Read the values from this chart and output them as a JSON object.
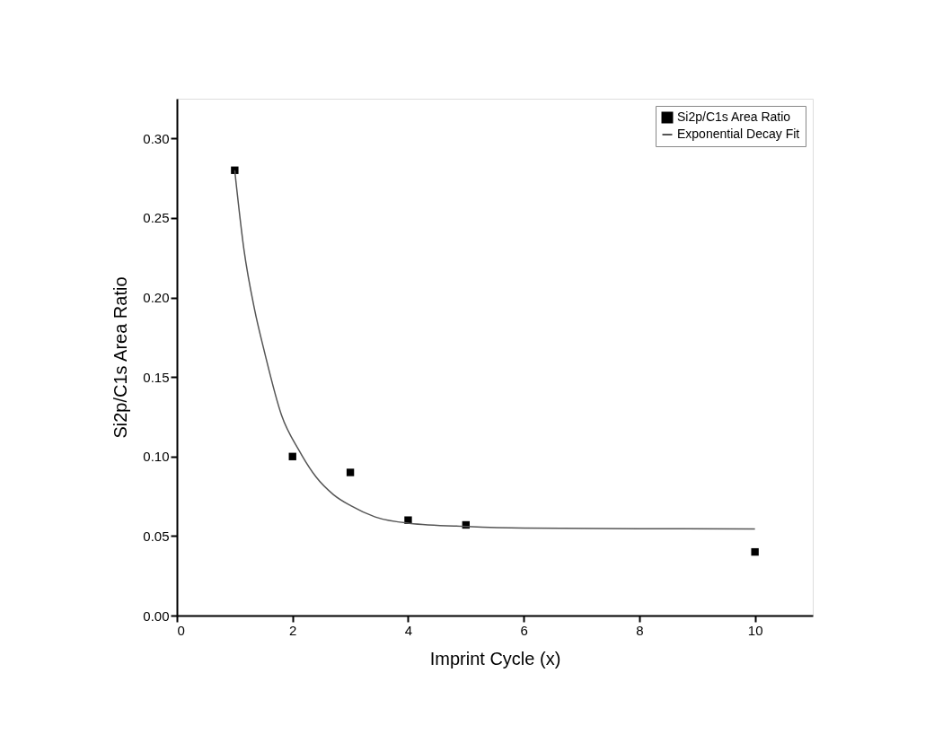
{
  "chart_data": {
    "type": "scatter",
    "xlabel": "Imprint Cycle (x)",
    "ylabel": "Si2p/C1s Area Ratio",
    "xlim": [
      0,
      11
    ],
    "xticks": [
      0,
      2,
      4,
      6,
      8,
      10
    ],
    "ylim": [
      0,
      0.325
    ],
    "yticks": [
      {
        "value": 0,
        "label": "0.00"
      },
      {
        "value": 0.05,
        "label": "0.05"
      },
      {
        "value": 0.1,
        "label": "0.10"
      },
      {
        "value": 0.15,
        "label": "0.15"
      },
      {
        "value": 0.2,
        "label": "0.20"
      },
      {
        "value": 0.25,
        "label": "0.25"
      },
      {
        "value": 0.3,
        "label": "0.30"
      }
    ],
    "grid": false,
    "legend": "top right",
    "series": [
      {
        "name": "Si2p/C1s Area Ratio",
        "marker": "square",
        "color": "#000000",
        "x": [
          1,
          2,
          3,
          4,
          5,
          10
        ],
        "values": [
          0.28,
          0.1,
          0.09,
          0.06,
          0.057,
          0.04
        ]
      },
      {
        "name": "Exponential Decay Fit",
        "type": "line",
        "marker": "none",
        "line_style": "solid",
        "color": "#555555",
        "x": [
          1,
          1.16,
          1.34,
          1.52,
          1.81,
          2.11,
          2.41,
          2.71,
          3.01,
          3.43,
          4.02,
          5.02,
          6,
          8,
          10
        ],
        "values": [
          0.28,
          0.23,
          0.193,
          0.165,
          0.126,
          0.104,
          0.087,
          0.076,
          0.069,
          0.062,
          0.058,
          0.056,
          0.055,
          0.0546,
          0.0545
        ]
      }
    ]
  }
}
